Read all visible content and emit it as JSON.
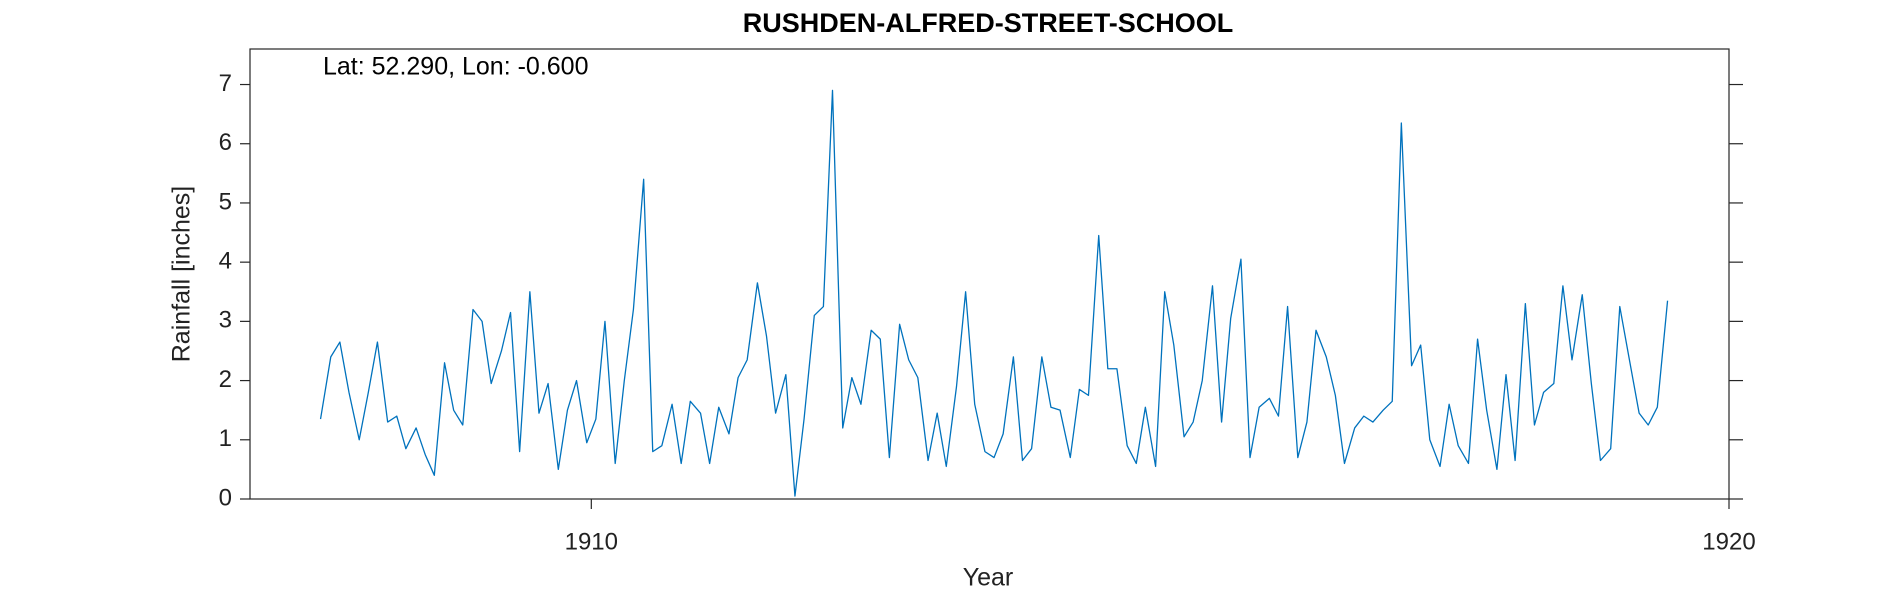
{
  "chart_data": {
    "type": "line",
    "title": "RUSHDEN-ALFRED-STREET-SCHOOL",
    "annotation": "Lat: 52.290, Lon: -0.600",
    "xlabel": "Year",
    "ylabel": "Rainfall [inches]",
    "xlim": [
      1907,
      1920
    ],
    "xticks": [
      1910,
      1920
    ],
    "ylim": [
      0,
      7.6
    ],
    "yticks": [
      0,
      1,
      2,
      3,
      4,
      5,
      6,
      7
    ],
    "grid": false,
    "x": [
      1907.62,
      1907.71,
      1907.79,
      1907.87,
      1907.96,
      1908.04,
      1908.12,
      1908.21,
      1908.29,
      1908.37,
      1908.46,
      1908.54,
      1908.62,
      1908.71,
      1908.79,
      1908.87,
      1908.96,
      1909.04,
      1909.12,
      1909.21,
      1909.29,
      1909.37,
      1909.46,
      1909.54,
      1909.62,
      1909.71,
      1909.79,
      1909.87,
      1909.96,
      1910.04,
      1910.12,
      1910.21,
      1910.29,
      1910.37,
      1910.46,
      1910.54,
      1910.62,
      1910.71,
      1910.79,
      1910.87,
      1910.96,
      1911.04,
      1911.12,
      1911.21,
      1911.29,
      1911.37,
      1911.46,
      1911.54,
      1911.62,
      1911.71,
      1911.79,
      1911.87,
      1911.96,
      1912.04,
      1912.12,
      1912.21,
      1912.29,
      1912.37,
      1912.46,
      1912.54,
      1912.62,
      1912.71,
      1912.79,
      1912.87,
      1912.96,
      1913.04,
      1913.12,
      1913.21,
      1913.29,
      1913.37,
      1913.46,
      1913.54,
      1913.62,
      1913.71,
      1913.79,
      1913.87,
      1913.96,
      1914.04,
      1914.12,
      1914.21,
      1914.29,
      1914.37,
      1914.46,
      1914.54,
      1914.62,
      1914.71,
      1914.79,
      1914.87,
      1914.96,
      1915.04,
      1915.12,
      1915.21,
      1915.29,
      1915.37,
      1915.46,
      1915.54,
      1915.62,
      1915.71,
      1915.79,
      1915.87,
      1915.96,
      1916.04,
      1916.12,
      1916.21,
      1916.29,
      1916.37,
      1916.46,
      1916.54,
      1916.62,
      1916.71,
      1916.79,
      1916.87,
      1916.96,
      1917.04,
      1917.12,
      1917.21,
      1917.29,
      1917.37,
      1917.46,
      1917.54,
      1917.62,
      1917.71,
      1917.79,
      1917.87,
      1917.96,
      1918.04,
      1918.12,
      1918.21,
      1918.29,
      1918.37,
      1918.46,
      1918.54,
      1918.62,
      1918.71,
      1918.79,
      1918.87,
      1918.96,
      1919.04,
      1919.12,
      1919.21,
      1919.29,
      1919.37,
      1919.46
    ],
    "color": "#0072bd",
    "values": [
      1.35,
      2.4,
      2.65,
      1.8,
      1.0,
      1.8,
      2.65,
      1.3,
      1.4,
      0.85,
      1.2,
      0.75,
      0.4,
      2.3,
      1.5,
      1.25,
      3.2,
      3.0,
      1.95,
      2.5,
      3.15,
      0.8,
      3.5,
      1.45,
      1.95,
      0.5,
      1.5,
      2.0,
      0.95,
      1.35,
      3.0,
      0.6,
      2.0,
      3.2,
      5.4,
      0.8,
      0.9,
      1.6,
      0.6,
      1.65,
      1.45,
      0.6,
      1.55,
      1.1,
      2.05,
      2.35,
      3.65,
      2.75,
      1.45,
      2.1,
      0.05,
      1.35,
      3.1,
      3.25,
      6.9,
      1.2,
      2.05,
      1.6,
      2.85,
      2.7,
      0.7,
      2.95,
      2.35,
      2.05,
      0.65,
      1.45,
      0.55,
      1.9,
      3.5,
      1.6,
      0.8,
      0.7,
      1.1,
      2.4,
      0.65,
      0.85,
      2.4,
      1.55,
      1.5,
      0.7,
      1.85,
      1.75,
      4.45,
      2.2,
      2.2,
      0.9,
      0.6,
      1.55,
      0.55,
      3.5,
      2.6,
      1.05,
      1.3,
      2.0,
      3.6,
      1.3,
      3.05,
      4.05,
      0.7,
      1.55,
      1.7,
      1.4,
      3.25,
      0.7,
      1.3,
      2.85,
      2.4,
      1.75,
      0.6,
      1.2,
      1.4,
      1.3,
      1.5,
      1.65,
      6.35,
      2.25,
      2.6,
      1.0,
      0.55,
      1.6,
      0.9,
      0.6,
      2.7,
      1.5,
      0.5,
      2.1,
      0.65,
      3.3,
      1.25,
      1.8,
      1.95,
      3.6,
      2.35,
      3.45,
      1.95,
      0.65,
      0.85,
      3.25,
      2.4,
      1.45,
      1.25,
      1.55,
      3.35
    ]
  }
}
